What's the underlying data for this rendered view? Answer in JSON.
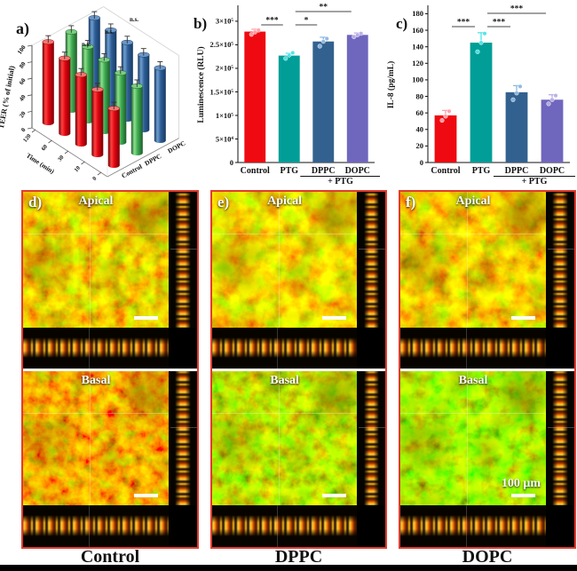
{
  "panels": {
    "a": {
      "letter": "a)"
    },
    "b": {
      "letter": "b)"
    },
    "c": {
      "letter": "c)"
    },
    "d": {
      "letter": "d)",
      "apical_label": "Apical",
      "basal_label": "Basal",
      "caption": "Control"
    },
    "e": {
      "letter": "e)",
      "apical_label": "Apical",
      "basal_label": "Basal",
      "caption": "DPPC"
    },
    "f": {
      "letter": "f)",
      "apical_label": "Apical",
      "basal_label": "Basal",
      "caption": "DOPC",
      "scale_bar_label": "100 μm"
    }
  },
  "chart_data": [
    {
      "type": "bar3d",
      "panel": "a",
      "zlabel": "TEER (% of initial)",
      "xlabel": "Time (min)",
      "x_ticks": [
        "120",
        "60",
        "30",
        "10",
        "0"
      ],
      "z_ticks": [
        "0",
        "20",
        "40",
        "60",
        "80",
        "100"
      ],
      "zlim": [
        0,
        100
      ],
      "series": [
        {
          "name": "Control",
          "color": "#e8000d",
          "values": [
            98,
            91,
            84,
            79,
            69
          ],
          "error": 3
        },
        {
          "name": "DPPC",
          "color": "#3fae52",
          "values": [
            95,
            90,
            87,
            84,
            81
          ],
          "error": 3
        },
        {
          "name": "DOPC",
          "color": "#2f5f98",
          "values": [
            97,
            95,
            93,
            91,
            88
          ],
          "error": 3
        }
      ],
      "annotations": [
        "n.s.",
        "n.s.",
        "n.s."
      ]
    },
    {
      "type": "bar",
      "panel": "b",
      "ylabel": "Luminescence (RLU)",
      "categories": [
        "Control",
        "PTG",
        "DPPC",
        "DOPC"
      ],
      "group_label": "+ PTG",
      "group_span": [
        2,
        3
      ],
      "values": [
        278000,
        227000,
        257000,
        271000
      ],
      "errors": [
        5000,
        5000,
        9000,
        4000
      ],
      "dots": [
        [
          272000,
          277000,
          281000
        ],
        [
          221000,
          228000,
          233000
        ],
        [
          247000,
          257000,
          263000
        ],
        [
          267000,
          271000,
          274000
        ]
      ],
      "bar_colors": [
        "#ee0a10",
        "#009e97",
        "#33618f",
        "#6f66bd"
      ],
      "dot_colors": [
        "#ff9fa8",
        "#4fe3e8",
        "#8fb8e0",
        "#b9aee6"
      ],
      "ytick_labels": [
        "0",
        "5×10⁴",
        "1×10⁵",
        "1.5×10⁵",
        "2×10⁵",
        "2.5×10⁵",
        "3×10⁵"
      ],
      "ytick_max": 300000,
      "ymax": 330000,
      "significance": [
        {
          "x1": 0,
          "x2": 1,
          "label": "***",
          "level": 0
        },
        {
          "x1": 1,
          "x2": 2,
          "label": "*",
          "level": 0
        },
        {
          "x1": 1,
          "x2": 3,
          "label": "**",
          "level": 1
        }
      ]
    },
    {
      "type": "bar",
      "panel": "c",
      "ylabel": "IL-8 (pg/mL)",
      "categories": [
        "Control",
        "PTG",
        "DPPC",
        "DOPC"
      ],
      "group_label": "+ PTG",
      "group_span": [
        2,
        3
      ],
      "values": [
        57,
        145,
        85,
        76
      ],
      "errors": [
        6,
        12,
        8,
        6
      ],
      "dots": [
        [
          51,
          56,
          62
        ],
        [
          134,
          145,
          156
        ],
        [
          76,
          84,
          92
        ],
        [
          71,
          76,
          81
        ]
      ],
      "bar_colors": [
        "#ee0a10",
        "#009e97",
        "#33618f",
        "#6f66bd"
      ],
      "dot_colors": [
        "#ff9fa8",
        "#4fe3e8",
        "#8fb8e0",
        "#b9aee6"
      ],
      "ytick_labels": [
        "0",
        "20",
        "40",
        "60",
        "80",
        "100",
        "120",
        "140",
        "160",
        "180"
      ],
      "ytick_max": 180,
      "ymax": 188,
      "significance": [
        {
          "x1": 0,
          "x2": 1,
          "label": "***",
          "level": 0
        },
        {
          "x1": 1,
          "x2": 2,
          "label": "***",
          "level": 0
        },
        {
          "x1": 1,
          "x2": 3,
          "label": "***",
          "level": 1
        }
      ]
    }
  ]
}
